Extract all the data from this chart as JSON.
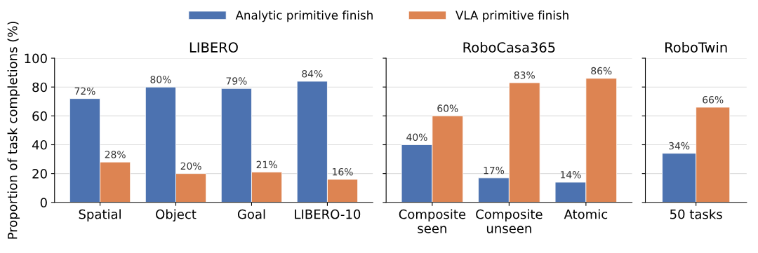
{
  "chart_data": [
    {
      "type": "bar",
      "title": "LIBERO",
      "ylabel": "Proportion of task completions (%)",
      "categories": [
        "Spatial",
        "Object",
        "Goal",
        "LIBERO-10"
      ],
      "series": [
        {
          "name": "Analytic primitive finish",
          "color": "#4c72b0",
          "values": [
            72,
            80,
            79,
            84
          ],
          "value_labels": [
            "72%",
            "80%",
            "79%",
            "84%"
          ]
        },
        {
          "name": "VLA primitive finish",
          "color": "#dd8452",
          "values": [
            28,
            20,
            21,
            16
          ],
          "value_labels": [
            "28%",
            "20%",
            "21%",
            "16%"
          ]
        }
      ],
      "ylim": [
        0,
        100
      ],
      "yticks": [
        0,
        20,
        40,
        60,
        80,
        100
      ],
      "grid": "y",
      "legend": "top"
    },
    {
      "type": "bar",
      "title": "RoboCasa365",
      "categories": [
        "Composite\nseen",
        "Composite\nunseen",
        "Atomic"
      ],
      "series": [
        {
          "color": "#4c72b0",
          "values": [
            40,
            17,
            14
          ],
          "value_labels": [
            "40%",
            "17%",
            "14%"
          ]
        },
        {
          "color": "#dd8452",
          "values": [
            60,
            83,
            86
          ],
          "value_labels": [
            "60%",
            "83%",
            "86%"
          ]
        }
      ],
      "ylim": [
        0,
        100
      ],
      "yticks": [
        0,
        20,
        40,
        60,
        80,
        100
      ],
      "grid": "y",
      "tick_labels": "x"
    },
    {
      "type": "bar",
      "title": "RoboTwin",
      "categories": [
        "50 tasks"
      ],
      "series": [
        {
          "color": "#4c72b0",
          "values": [
            34
          ],
          "value_labels": [
            "34%"
          ]
        },
        {
          "color": "#dd8452",
          "values": [
            66
          ],
          "value_labels": [
            "66%"
          ]
        }
      ],
      "ylim": [
        0,
        100
      ],
      "yticks": [
        0,
        20,
        40,
        60,
        80,
        100
      ],
      "grid": "y",
      "tick_labels": "x"
    }
  ]
}
